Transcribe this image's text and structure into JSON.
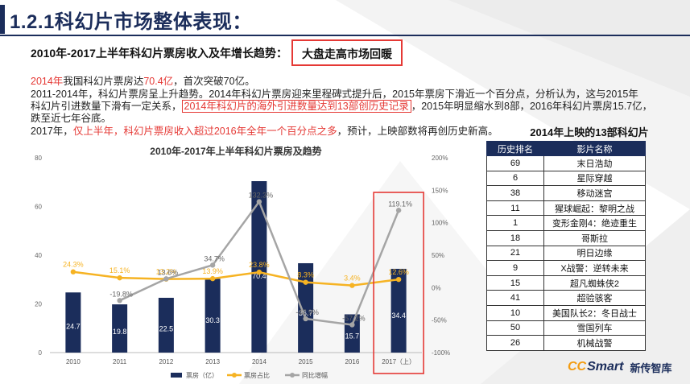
{
  "header": {
    "title": "1.2.1科幻片市场整体表现："
  },
  "subtitle": {
    "main": "2010年-2017上半年科幻片票房收入及年增长趋势：",
    "highlight": "大盘走高市场回暖"
  },
  "paragraph": {
    "l1_a": "2014年",
    "l1_b": "我国科幻片票房达",
    "l1_c": "70.4亿",
    "l1_d": "，首次突破70亿。",
    "l2": "2011-2014年，科幻片票房呈上升趋势。2014年科幻片票房迎来里程碑式提升后，2015年票房下滑近一个百分点，分析认为，这与2015年",
    "l3_a": "科幻片引进数量下滑有一定关系，",
    "l3_b": "2014年科幻片的海外引进数量达到13部创历史记录",
    "l3_c": "，2015年明显缩水到8部，2016年科幻片票房15.7亿，",
    "l4": "跌至近七年谷底。",
    "l5_a": "2017年，",
    "l5_b": "仅上半年，科幻片票房收入超过2016年全年一个百分点之多",
    "l5_c": "，预计，上映部数将再创历史新高。"
  },
  "chart_data": {
    "type": "bar",
    "title": "2010年-2017年上半年科幻片票房及趋势",
    "categories": [
      "2010",
      "2011",
      "2012",
      "2013",
      "2014",
      "2015",
      "2016",
      "2017（上）"
    ],
    "ylim": [
      0,
      80
    ],
    "y2lim": [
      -100,
      200
    ],
    "y_ticks": [
      "0",
      "20",
      "40",
      "60",
      "80"
    ],
    "y2_ticks": [
      "-100%",
      "-50%",
      "0%",
      "50%",
      "100%",
      "150%",
      "200%"
    ],
    "series": [
      {
        "name": "票房（亿）",
        "type": "bar",
        "color": "#1b2d5b",
        "values": [
          24.7,
          19.8,
          22.5,
          30.3,
          70.4,
          36.7,
          15.7,
          34.4
        ],
        "labels": [
          "24.7",
          "19.8",
          "22.5",
          "30.3",
          "70.4",
          "36.7",
          "15.7",
          "34.4"
        ]
      },
      {
        "name": "票房占比",
        "type": "line",
        "axis": "right",
        "color": "#f6b323",
        "values": [
          24.3,
          15.1,
          13.2,
          13.9,
          23.8,
          8.3,
          3.4,
          12.6
        ],
        "labels": [
          "24.3%",
          "15.1%",
          "13.2%",
          "13.9%",
          "23.8%",
          "8.3%",
          "3.4%",
          "12.6%"
        ]
      },
      {
        "name": "同比增幅",
        "type": "line",
        "axis": "right",
        "color": "#a5a5a5",
        "values": [
          null,
          -19.8,
          13.6,
          34.7,
          132.3,
          -47.9,
          -57.2,
          119.1
        ],
        "labels": [
          "",
          "-19.8%",
          "13.6%",
          "34.7%",
          "132.3%",
          "-47.9%",
          "-57.2%",
          "119.1%"
        ]
      }
    ],
    "highlight_category": "2017（上）",
    "legend_position": "bottom"
  },
  "table": {
    "title": "2014年上映的13部科幻片",
    "headers": [
      "历史排名",
      "影片名称"
    ],
    "rows": [
      [
        "69",
        "末日浩劫"
      ],
      [
        "6",
        "星际穿越"
      ],
      [
        "38",
        "移动迷宫"
      ],
      [
        "11",
        "猩球崛起：黎明之战"
      ],
      [
        "1",
        "变形金刚4：绝迹重生"
      ],
      [
        "18",
        "哥斯拉"
      ],
      [
        "21",
        "明日边缘"
      ],
      [
        "9",
        "X战警：逆转未来"
      ],
      [
        "15",
        "超凡蜘蛛侠2"
      ],
      [
        "41",
        "超验骇客"
      ],
      [
        "10",
        "美国队长2：冬日战士"
      ],
      [
        "50",
        "雪国列车"
      ],
      [
        "26",
        "机械战警"
      ]
    ]
  },
  "logo": {
    "part1": "CC",
    "part2": "Smart",
    "cn": "新传智库"
  },
  "colors": {
    "navy": "#1b2d5b",
    "gold": "#f6b323",
    "gray": "#a5a5a5",
    "red": "#e53935"
  }
}
